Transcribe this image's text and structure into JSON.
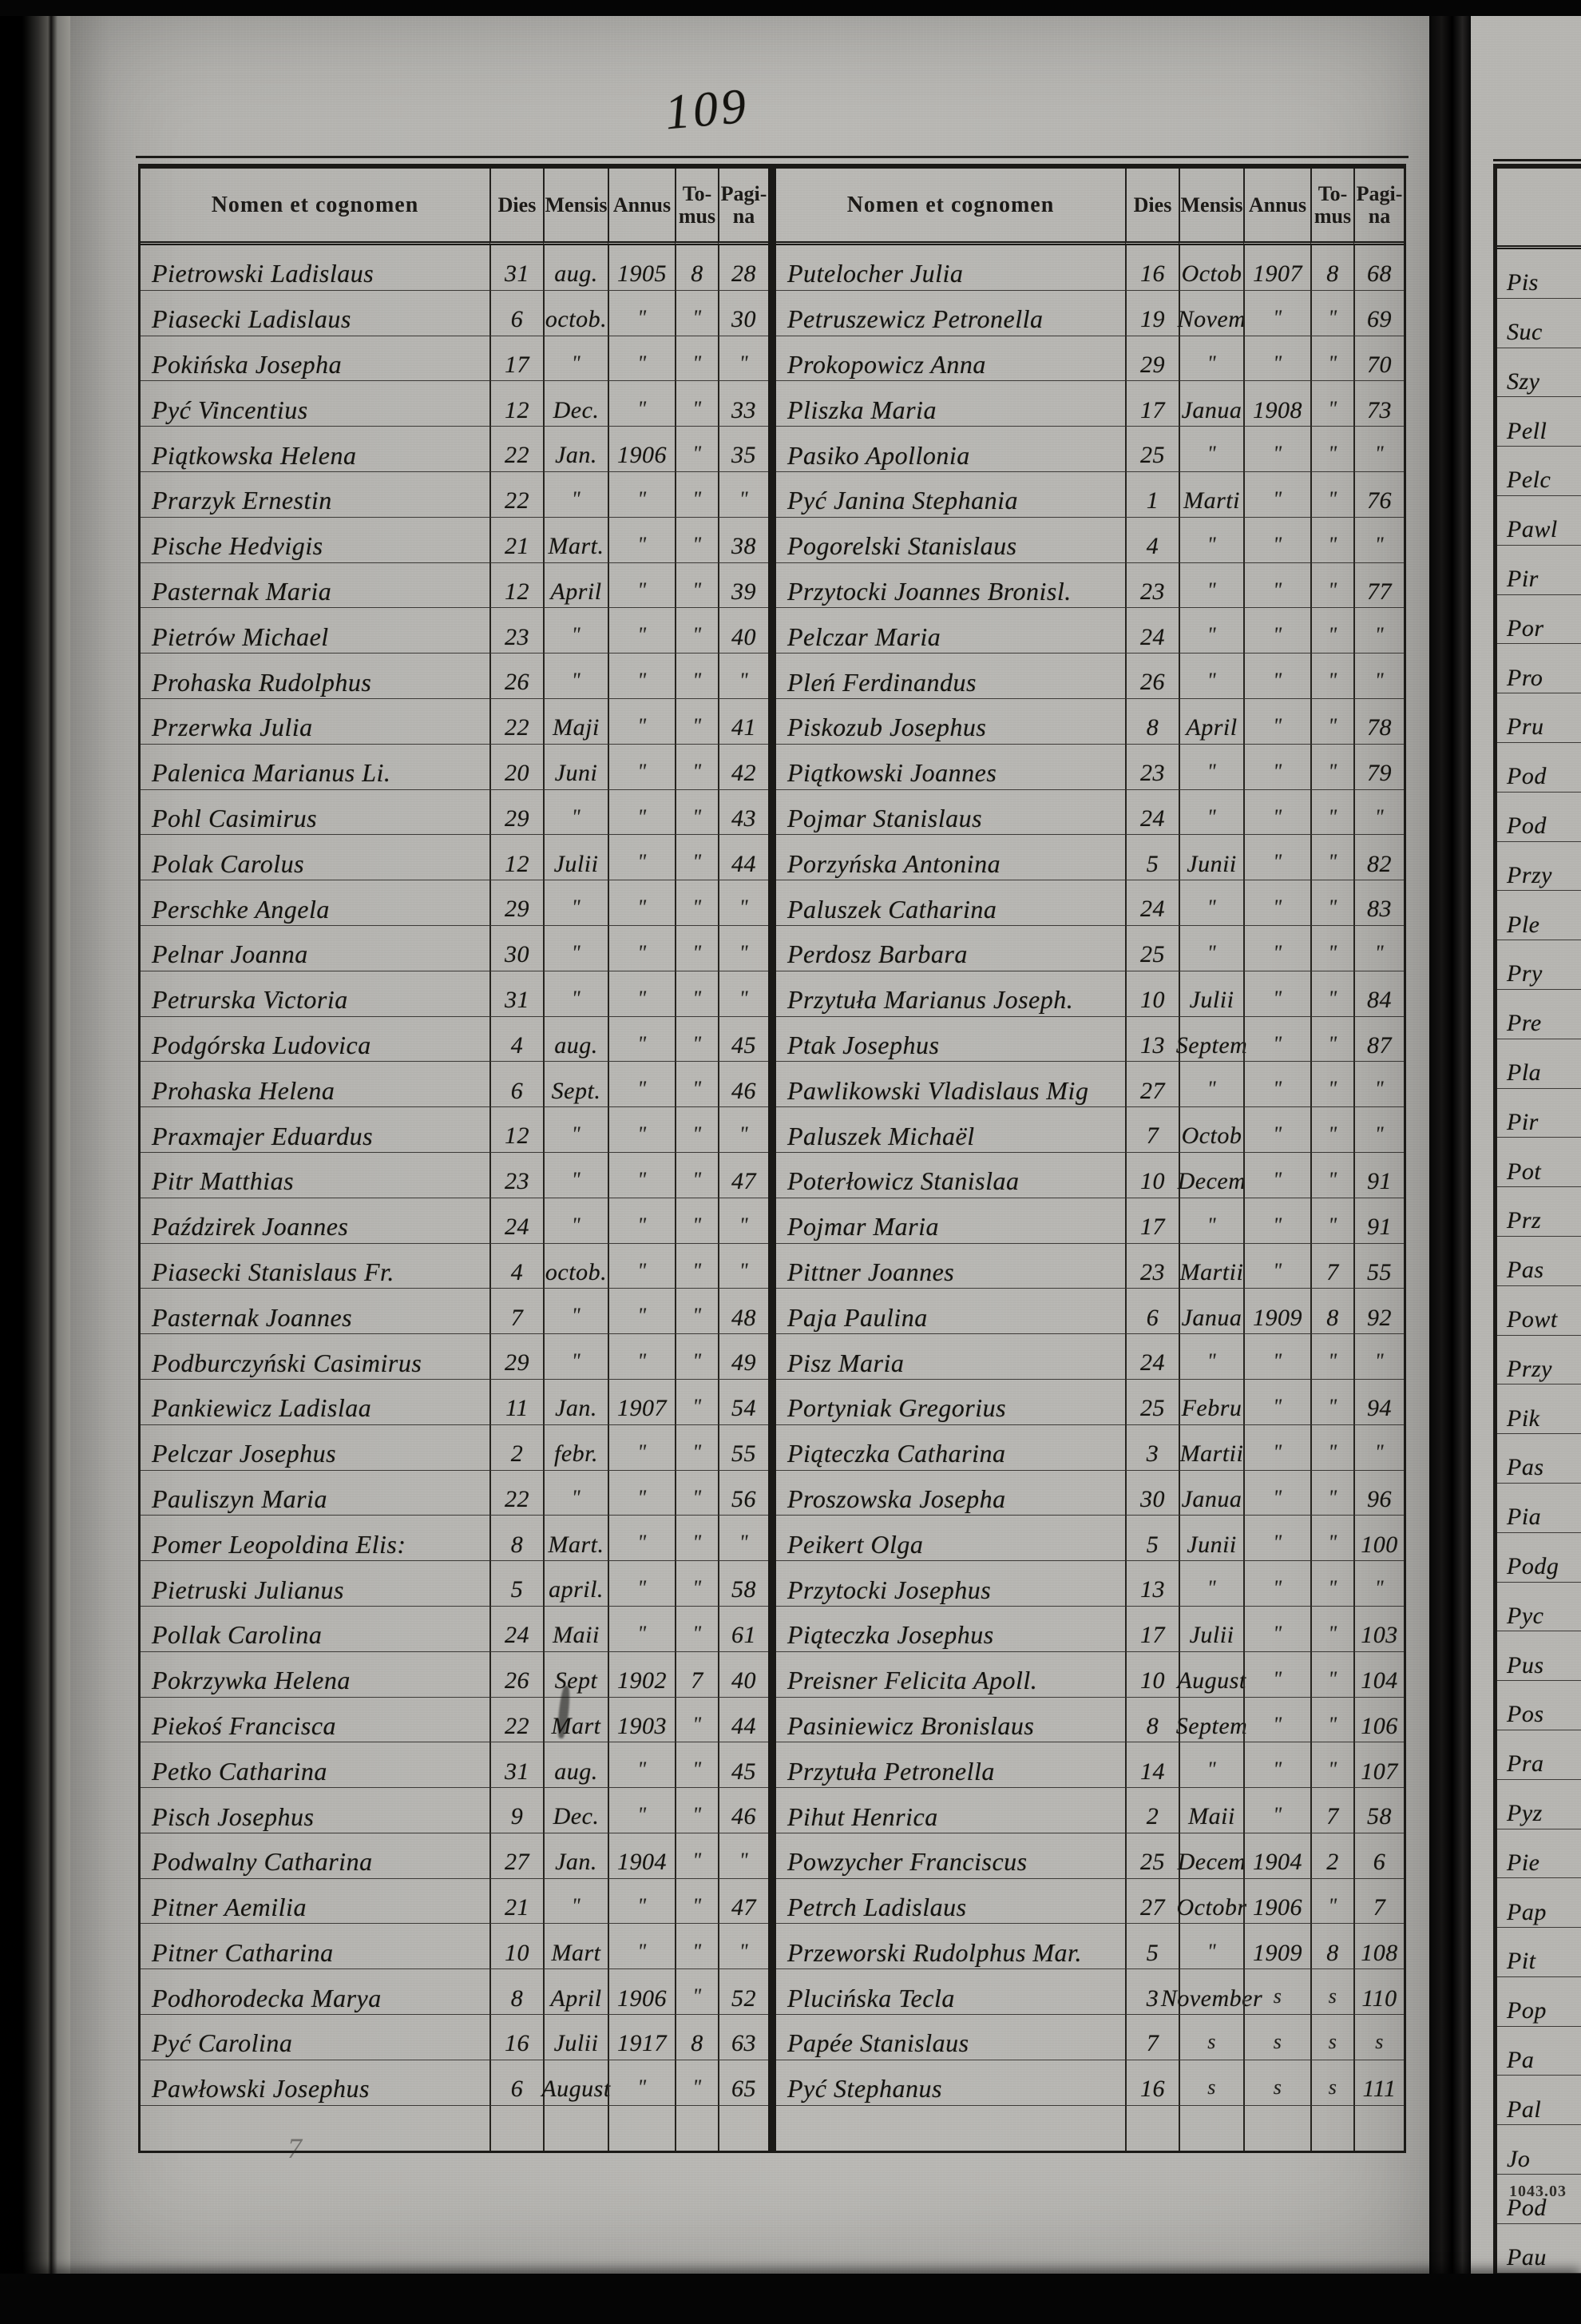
{
  "page": {
    "handwritten_page_number": "109",
    "pencil_mark": "7",
    "print_code": "1043.03"
  },
  "colors": {
    "paper": "#b6b5b1",
    "ink": "#14130f",
    "table_line": "#1b1a17",
    "photo_background": "#070707",
    "pencil": "#6a6a66"
  },
  "table_header": {
    "name": "Nomen et cognomen",
    "dies": "Dies",
    "mensis": "Mensis",
    "annus": "Annus",
    "tomus_line1": "To-",
    "tomus_line2": "mus",
    "pagina_line1": "Pagi-",
    "pagina_line2": "na"
  },
  "left_table": {
    "rows": [
      [
        "Pietrowski Ladislaus",
        "31",
        "aug.",
        "1905",
        "8",
        "28"
      ],
      [
        "Piasecki Ladislaus",
        "6",
        "octob.",
        "\"",
        "\"",
        "30"
      ],
      [
        "Pokińska Josepha",
        "17",
        "\"",
        "\"",
        "\"",
        "\""
      ],
      [
        "Pyć Vincentius",
        "12",
        "Dec.",
        "\"",
        "\"",
        "33"
      ],
      [
        "Piątkowska Helena",
        "22",
        "Jan.",
        "1906",
        "\"",
        "35"
      ],
      [
        "Prarzyk Ernestin",
        "22",
        "\"",
        "\"",
        "\"",
        "\""
      ],
      [
        "Pische Hedvigis",
        "21",
        "Mart.",
        "\"",
        "\"",
        "38"
      ],
      [
        "Pasternak Maria",
        "12",
        "April",
        "\"",
        "\"",
        "39"
      ],
      [
        "Pietrów Michael",
        "23",
        "\"",
        "\"",
        "\"",
        "40"
      ],
      [
        "Prohaska Rudolphus",
        "26",
        "\"",
        "\"",
        "\"",
        "\""
      ],
      [
        "Przerwka Julia",
        "22",
        "Maji",
        "\"",
        "\"",
        "41"
      ],
      [
        "Palenica Marianus Li.",
        "20",
        "Juni",
        "\"",
        "\"",
        "42"
      ],
      [
        "Pohl Casimirus",
        "29",
        "\"",
        "\"",
        "\"",
        "43"
      ],
      [
        "Polak Carolus",
        "12",
        "Julii",
        "\"",
        "\"",
        "44"
      ],
      [
        "Perschke Angela",
        "29",
        "\"",
        "\"",
        "\"",
        "\""
      ],
      [
        "Pelnar Joanna",
        "30",
        "\"",
        "\"",
        "\"",
        "\""
      ],
      [
        "Petrurska Victoria",
        "31",
        "\"",
        "\"",
        "\"",
        "\""
      ],
      [
        "Podgórska Ludovica",
        "4",
        "aug.",
        "\"",
        "\"",
        "45"
      ],
      [
        "Prohaska Helena",
        "6",
        "Sept.",
        "\"",
        "\"",
        "46"
      ],
      [
        "Praxmajer Eduardus",
        "12",
        "\"",
        "\"",
        "\"",
        "\""
      ],
      [
        "Pitr Matthias",
        "23",
        "\"",
        "\"",
        "\"",
        "47"
      ],
      [
        "Paździrek Joannes",
        "24",
        "\"",
        "\"",
        "\"",
        "\""
      ],
      [
        "Piasecki Stanislaus Fr.",
        "4",
        "octob.",
        "\"",
        "\"",
        "\""
      ],
      [
        "Pasternak Joannes",
        "7",
        "\"",
        "\"",
        "\"",
        "48"
      ],
      [
        "Podburczyński Casimirus",
        "29",
        "\"",
        "\"",
        "\"",
        "49"
      ],
      [
        "Pankiewicz Ladislaa",
        "11",
        "Jan.",
        "1907",
        "\"",
        "54"
      ],
      [
        "Pelczar Josephus",
        "2",
        "febr.",
        "\"",
        "\"",
        "55"
      ],
      [
        "Pauliszyn Maria",
        "22",
        "\"",
        "\"",
        "\"",
        "56"
      ],
      [
        "Pomer Leopoldina Elis:",
        "8",
        "Mart.",
        "\"",
        "\"",
        "\""
      ],
      [
        "Pietruski Julianus",
        "5",
        "april.",
        "\"",
        "\"",
        "58"
      ],
      [
        "Pollak Carolina",
        "24",
        "Maii",
        "\"",
        "\"",
        "61"
      ],
      [
        "Pokrzywka Helena",
        "26",
        "Sept",
        "1902",
        "7",
        "40"
      ],
      [
        "Piekoś Francisca",
        "22",
        "Mart",
        "1903",
        "\"",
        "44"
      ],
      [
        "Petko Catharina",
        "31",
        "aug.",
        "\"",
        "\"",
        "45"
      ],
      [
        "Pisch Josephus",
        "9",
        "Dec.",
        "\"",
        "\"",
        "46"
      ],
      [
        "Podwalny Catharina",
        "27",
        "Jan.",
        "1904",
        "\"",
        "\""
      ],
      [
        "Pitner Aemilia",
        "21",
        "\"",
        "\"",
        "\"",
        "47"
      ],
      [
        "Pitner Catharina",
        "10",
        "Mart",
        "\"",
        "\"",
        "\""
      ],
      [
        "Podhorodecka Marya",
        "8",
        "April",
        "1906",
        "\"",
        "52"
      ],
      [
        "Pyć Carolina",
        "16",
        "Julii",
        "1917",
        "8",
        "63"
      ],
      [
        "Pawłowski Josephus",
        "6",
        "August",
        "\"",
        "\"",
        "65"
      ]
    ]
  },
  "right_table": {
    "rows": [
      [
        "Putelocher Julia",
        "16",
        "Octob",
        "1907",
        "8",
        "68"
      ],
      [
        "Petruszewicz Petronella",
        "19",
        "Novem",
        "\"",
        "\"",
        "69"
      ],
      [
        "Prokopowicz Anna",
        "29",
        "\"",
        "\"",
        "\"",
        "70"
      ],
      [
        "Pliszka Maria",
        "17",
        "Janua",
        "1908",
        "\"",
        "73"
      ],
      [
        "Pasiko Apollonia",
        "25",
        "\"",
        "\"",
        "\"",
        "\""
      ],
      [
        "Pyć Janina Stephania",
        "1",
        "Marti",
        "\"",
        "\"",
        "76"
      ],
      [
        "Pogorelski Stanislaus",
        "4",
        "\"",
        "\"",
        "\"",
        "\""
      ],
      [
        "Przytocki Joannes Bronisl.",
        "23",
        "\"",
        "\"",
        "\"",
        "77"
      ],
      [
        "Pelczar Maria",
        "24",
        "\"",
        "\"",
        "\"",
        "\""
      ],
      [
        "Pleń Ferdinandus",
        "26",
        "\"",
        "\"",
        "\"",
        "\""
      ],
      [
        "Piskozub Josephus",
        "8",
        "April",
        "\"",
        "\"",
        "78"
      ],
      [
        "Piątkowski Joannes",
        "23",
        "\"",
        "\"",
        "\"",
        "79"
      ],
      [
        "Pojmar Stanislaus",
        "24",
        "\"",
        "\"",
        "\"",
        "\""
      ],
      [
        "Porzyńska Antonina",
        "5",
        "Junii",
        "\"",
        "\"",
        "82"
      ],
      [
        "Paluszek Catharina",
        "24",
        "\"",
        "\"",
        "\"",
        "83"
      ],
      [
        "Perdosz Barbara",
        "25",
        "\"",
        "\"",
        "\"",
        "\""
      ],
      [
        "Przytuła Marianus Joseph.",
        "10",
        "Julii",
        "\"",
        "\"",
        "84"
      ],
      [
        "Ptak Josephus",
        "13",
        "Septem",
        "\"",
        "\"",
        "87"
      ],
      [
        "Pawlikowski Vladislaus Mig",
        "27",
        "\"",
        "\"",
        "\"",
        "\""
      ],
      [
        "Paluszek Michaël",
        "7",
        "Octob",
        "\"",
        "\"",
        "\""
      ],
      [
        "Poterłowicz Stanislaa",
        "10",
        "Decem",
        "\"",
        "\"",
        "91"
      ],
      [
        "Pojmar Maria",
        "17",
        "\"",
        "\"",
        "\"",
        "91"
      ],
      [
        "Pittner Joannes",
        "23",
        "Martii",
        "\"",
        "7",
        "55"
      ],
      [
        "Paja Paulina",
        "6",
        "Janua",
        "1909",
        "8",
        "92"
      ],
      [
        "Pisz Maria",
        "24",
        "\"",
        "\"",
        "\"",
        "\""
      ],
      [
        "Portyniak Gregorius",
        "25",
        "Febru",
        "\"",
        "\"",
        "94"
      ],
      [
        "Piąteczka Catharina",
        "3",
        "Martii",
        "\"",
        "\"",
        "\""
      ],
      [
        "Proszowska Josepha",
        "30",
        "Janua",
        "\"",
        "\"",
        "96"
      ],
      [
        "Peikert Olga",
        "5",
        "Junii",
        "\"",
        "\"",
        "100"
      ],
      [
        "Przytocki Josephus",
        "13",
        "\"",
        "\"",
        "\"",
        "\""
      ],
      [
        "Piąteczka Josephus",
        "17",
        "Julii",
        "\"",
        "\"",
        "103"
      ],
      [
        "Preisner Felicita Apoll.",
        "10",
        "August",
        "\"",
        "\"",
        "104"
      ],
      [
        "Pasiniewicz Bronislaus",
        "8",
        "Septem",
        "\"",
        "\"",
        "106"
      ],
      [
        "Przytuła Petronella",
        "14",
        "\"",
        "\"",
        "\"",
        "107"
      ],
      [
        "Pihut Henrica",
        "2",
        "Maii",
        "\"",
        "7",
        "58"
      ],
      [
        "Powzycher Franciscus",
        "25",
        "Decem",
        "1904",
        "2",
        "6"
      ],
      [
        "Petrch Ladislaus",
        "27",
        "Octobr",
        "1906",
        "\"",
        "7"
      ],
      [
        "Przeworski Rudolphus Mar.",
        "5",
        "\"",
        "1909",
        "8",
        "108"
      ],
      [
        "Plucińska Tecla",
        "3",
        "November",
        "s",
        "s",
        "110"
      ],
      [
        "Papée Stanislaus",
        "7",
        "s",
        "s",
        "s",
        "s"
      ],
      [
        "Pyć Stephanus",
        "16",
        "s",
        "s",
        "s",
        "111"
      ]
    ]
  },
  "next_page_fragments": [
    "Pis",
    "Suc",
    "Szy",
    "Pell",
    "Pelc",
    "Pawl",
    "Pir",
    "Por",
    "Pro",
    "Pru",
    "Pod",
    "Pod",
    "Przy",
    "Ple",
    "Pry",
    "Pre",
    "Pla",
    "Pir",
    "Pot",
    "Prz",
    "Pas",
    "Powt",
    "Przy",
    "Pik",
    "Pas",
    "Pia",
    "Podg",
    "Pyc",
    "Pus",
    "Pos",
    "Pra",
    "Pyz",
    "Pie",
    "Pap",
    "Pit",
    "Pop",
    "Pa",
    "Pal",
    "Jo",
    "Pod",
    "Pau"
  ]
}
